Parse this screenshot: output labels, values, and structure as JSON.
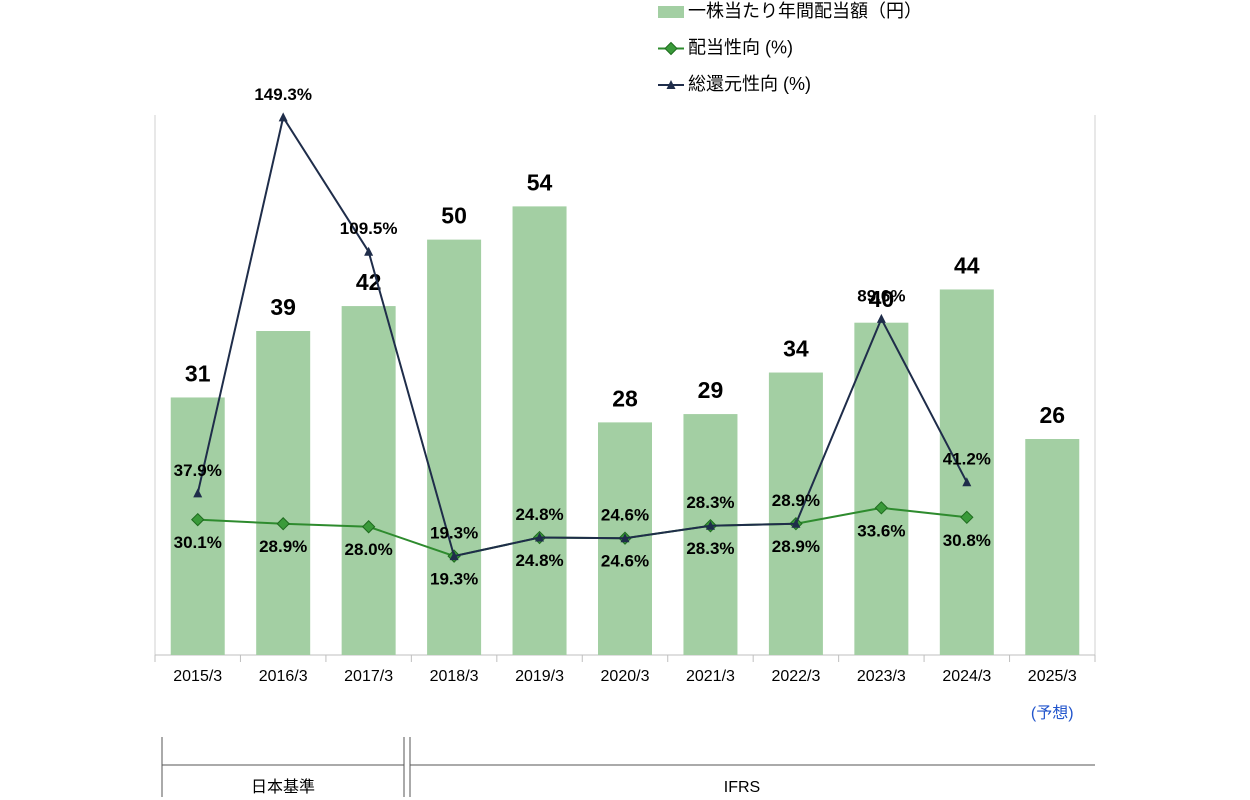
{
  "chart_data": {
    "type": "combo",
    "categories": [
      "2015/3",
      "2016/3",
      "2017/3",
      "2018/3",
      "2019/3",
      "2020/3",
      "2021/3",
      "2022/3",
      "2023/3",
      "2024/3",
      "2025/3"
    ],
    "series": [
      {
        "name": "一株当たり年間配当額（円）",
        "type": "bar",
        "color": "#a3cfa3",
        "values": [
          31,
          39,
          42,
          50,
          54,
          28,
          29,
          34,
          40,
          44,
          26
        ]
      },
      {
        "name": "配当性向 (%)",
        "type": "line",
        "axis": "y2",
        "color": "#2e8b2e",
        "marker": "diamond",
        "values": [
          30.1,
          28.9,
          28.0,
          19.3,
          24.8,
          24.6,
          28.3,
          28.9,
          33.6,
          30.8,
          null
        ],
        "value_labels": [
          "30.1%",
          "28.9%",
          "28.0%",
          "19.3%",
          "24.8%",
          "24.6%",
          "28.3%",
          "28.9%",
          "33.6%",
          "30.8%",
          null
        ]
      },
      {
        "name": "総還元性向 (%)",
        "type": "line",
        "axis": "y2",
        "color": "#1f2d4a",
        "marker": "triangle",
        "values": [
          37.9,
          149.3,
          109.5,
          19.3,
          24.8,
          24.6,
          28.3,
          28.9,
          89.6,
          41.2,
          null
        ],
        "value_labels": [
          "37.9%",
          "149.3%",
          "109.5%",
          "19.3%",
          "24.8%",
          "24.6%",
          "28.3%",
          "28.9%",
          "89.6%",
          "41.2%",
          null
        ]
      }
    ],
    "ylim": [
      0,
      65
    ],
    "y2lim": [
      -10,
      150
    ],
    "annotations": [
      "(予想)",
      "日本基準",
      "IFRS"
    ]
  }
}
